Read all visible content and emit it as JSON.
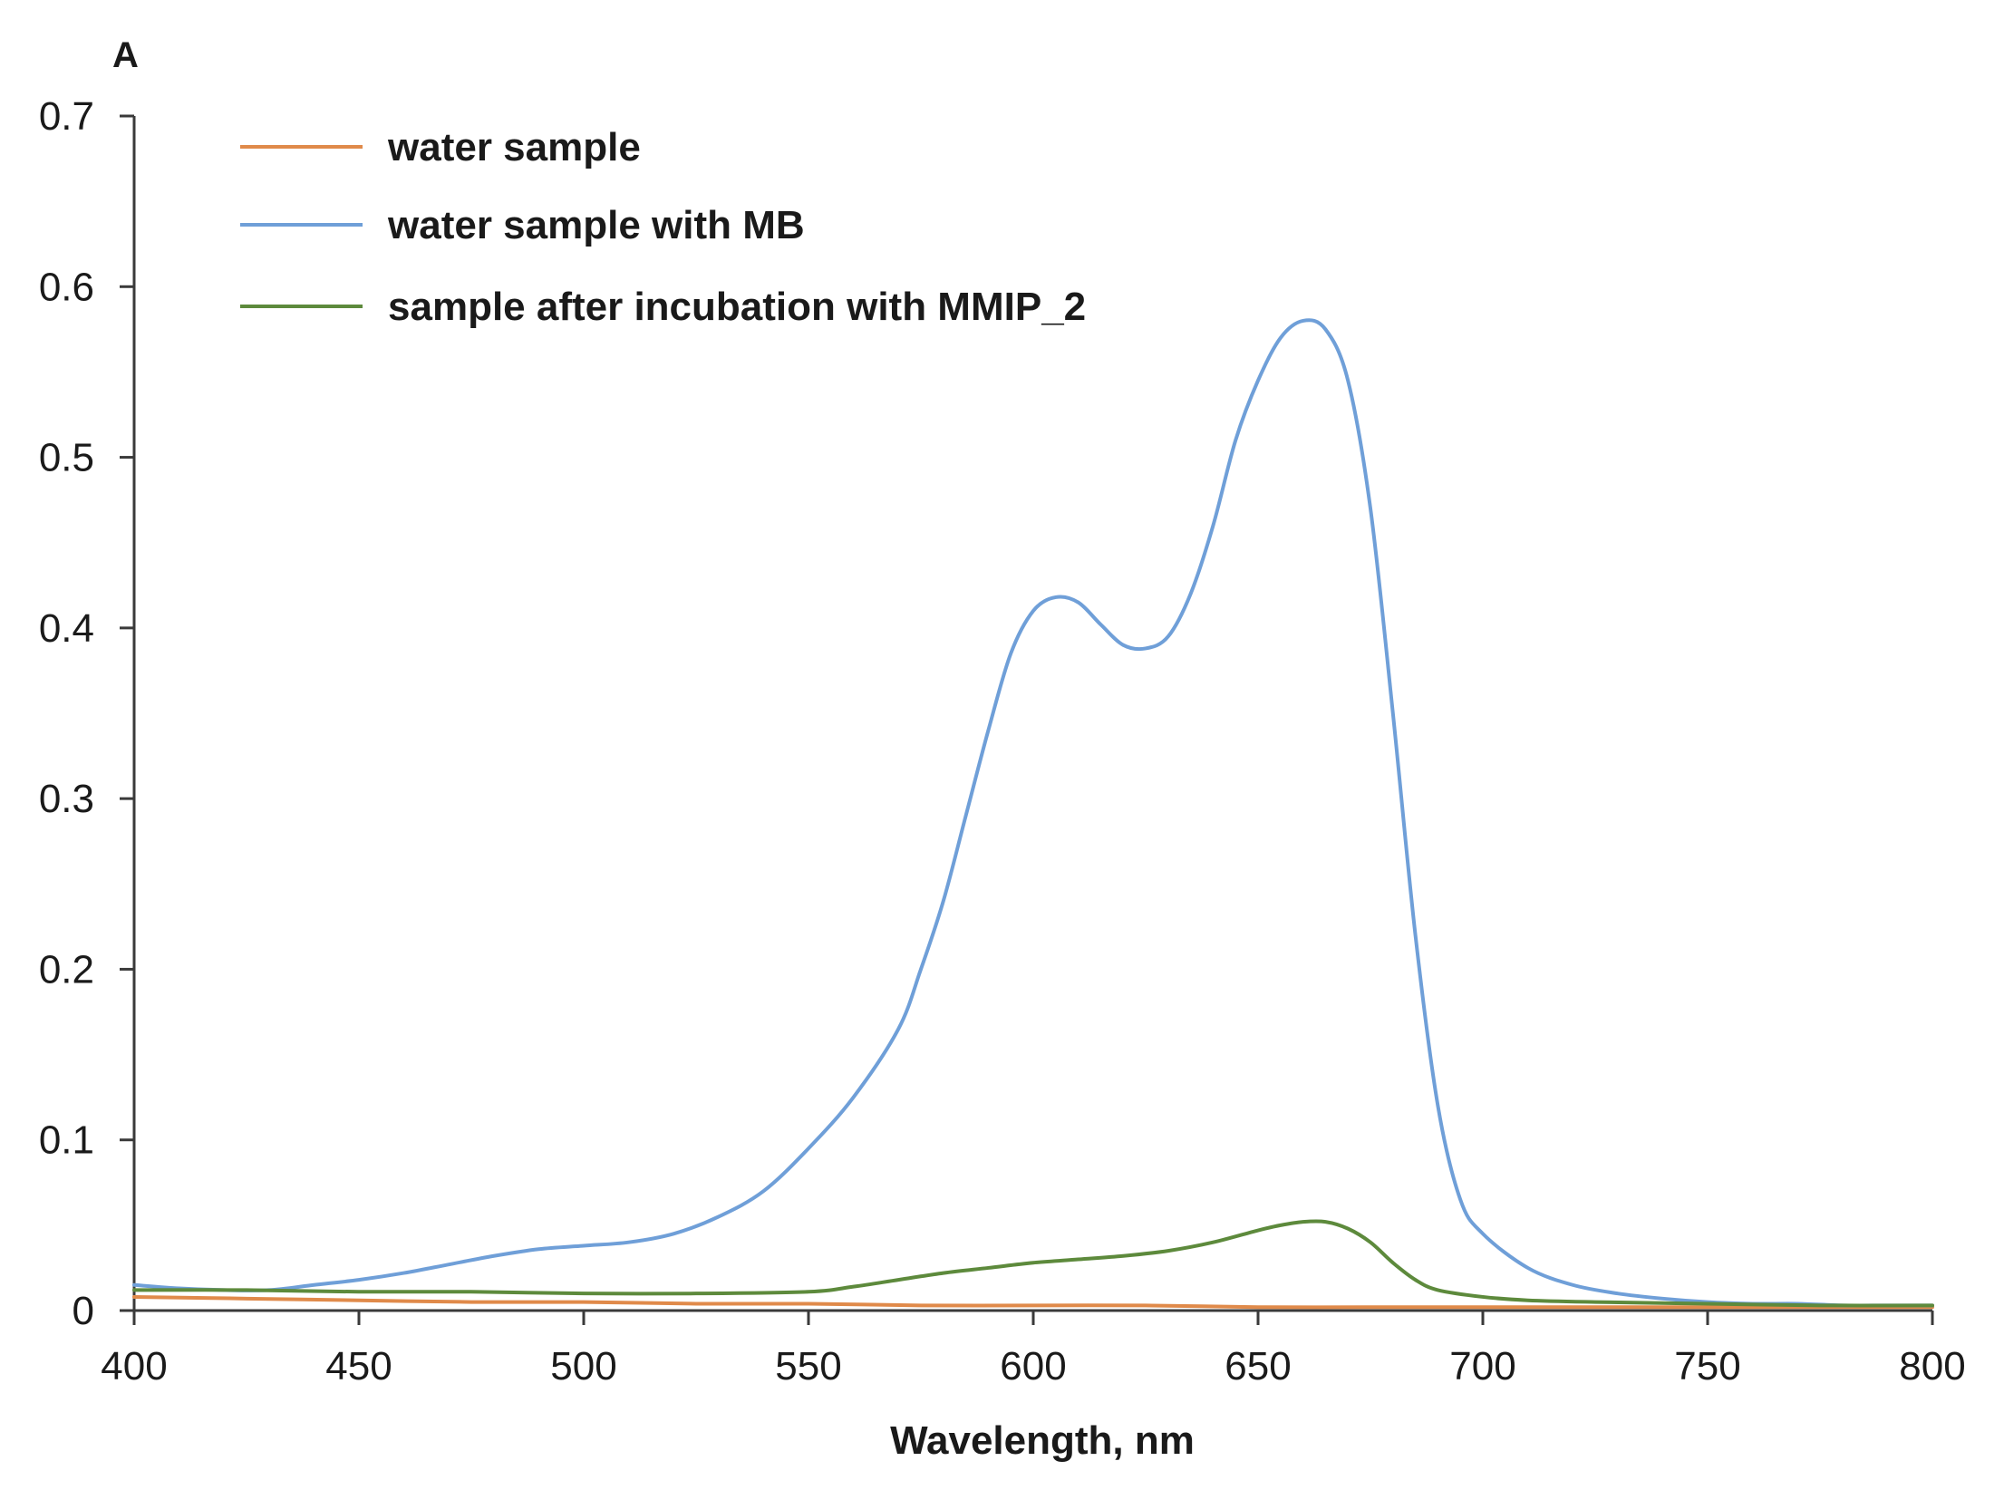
{
  "chart_data": {
    "type": "line",
    "panel_label": "A",
    "title": "",
    "xlabel": "Wavelength, nm",
    "ylabel": "",
    "xlim": [
      400,
      800
    ],
    "ylim": [
      0,
      0.7
    ],
    "x_ticks": [
      400,
      450,
      500,
      550,
      600,
      650,
      700,
      750,
      800
    ],
    "x_tick_labels": [
      "400",
      "450",
      "500",
      "550",
      "600",
      "650",
      "700",
      "750",
      "800"
    ],
    "y_ticks": [
      0,
      0.1,
      0.2,
      0.3,
      0.4,
      0.5,
      0.6,
      0.7
    ],
    "y_tick_labels": [
      "0",
      "0.1",
      "0.2",
      "0.3",
      "0.4",
      "0.5",
      "0.6",
      "0.7"
    ],
    "grid": false,
    "legend_position": "top-left",
    "series": [
      {
        "name": "water sample",
        "color": "#e08a4a",
        "x": [
          400,
          425,
          450,
          475,
          500,
          525,
          550,
          575,
          600,
          625,
          650,
          675,
          700,
          725,
          750,
          775,
          800
        ],
        "y": [
          0.008,
          0.007,
          0.006,
          0.005,
          0.005,
          0.004,
          0.004,
          0.003,
          0.003,
          0.003,
          0.002,
          0.002,
          0.002,
          0.002,
          0.002,
          0.002,
          0.002
        ]
      },
      {
        "name": "water sample with MB",
        "color": "#6f9fd8",
        "x": [
          400,
          410,
          420,
          430,
          440,
          450,
          460,
          470,
          480,
          490,
          500,
          510,
          520,
          530,
          540,
          550,
          560,
          570,
          575,
          580,
          585,
          590,
          595,
          600,
          605,
          610,
          615,
          620,
          625,
          630,
          635,
          640,
          645,
          650,
          655,
          660,
          665,
          670,
          675,
          680,
          685,
          690,
          695,
          700,
          710,
          720,
          730,
          740,
          750,
          760,
          770,
          780,
          790,
          800
        ],
        "y": [
          0.015,
          0.013,
          0.012,
          0.012,
          0.015,
          0.018,
          0.022,
          0.027,
          0.032,
          0.036,
          0.038,
          0.04,
          0.045,
          0.055,
          0.07,
          0.095,
          0.125,
          0.165,
          0.2,
          0.24,
          0.29,
          0.34,
          0.385,
          0.41,
          0.418,
          0.415,
          0.402,
          0.39,
          0.388,
          0.395,
          0.42,
          0.46,
          0.51,
          0.545,
          0.57,
          0.58,
          0.575,
          0.545,
          0.47,
          0.35,
          0.22,
          0.12,
          0.065,
          0.045,
          0.025,
          0.015,
          0.01,
          0.007,
          0.005,
          0.004,
          0.004,
          0.003,
          0.003,
          0.003
        ]
      },
      {
        "name": "sample after incubation with MMIP_2",
        "color": "#5d8a3c",
        "x": [
          400,
          425,
          450,
          475,
          500,
          525,
          550,
          560,
          570,
          580,
          590,
          600,
          610,
          620,
          630,
          640,
          650,
          655,
          660,
          665,
          670,
          675,
          680,
          685,
          690,
          700,
          710,
          725,
          750,
          775,
          800
        ],
        "y": [
          0.012,
          0.012,
          0.011,
          0.011,
          0.01,
          0.01,
          0.011,
          0.014,
          0.018,
          0.022,
          0.025,
          0.028,
          0.03,
          0.032,
          0.035,
          0.04,
          0.047,
          0.05,
          0.052,
          0.052,
          0.048,
          0.04,
          0.028,
          0.018,
          0.012,
          0.008,
          0.006,
          0.005,
          0.004,
          0.003,
          0.003
        ]
      }
    ]
  }
}
